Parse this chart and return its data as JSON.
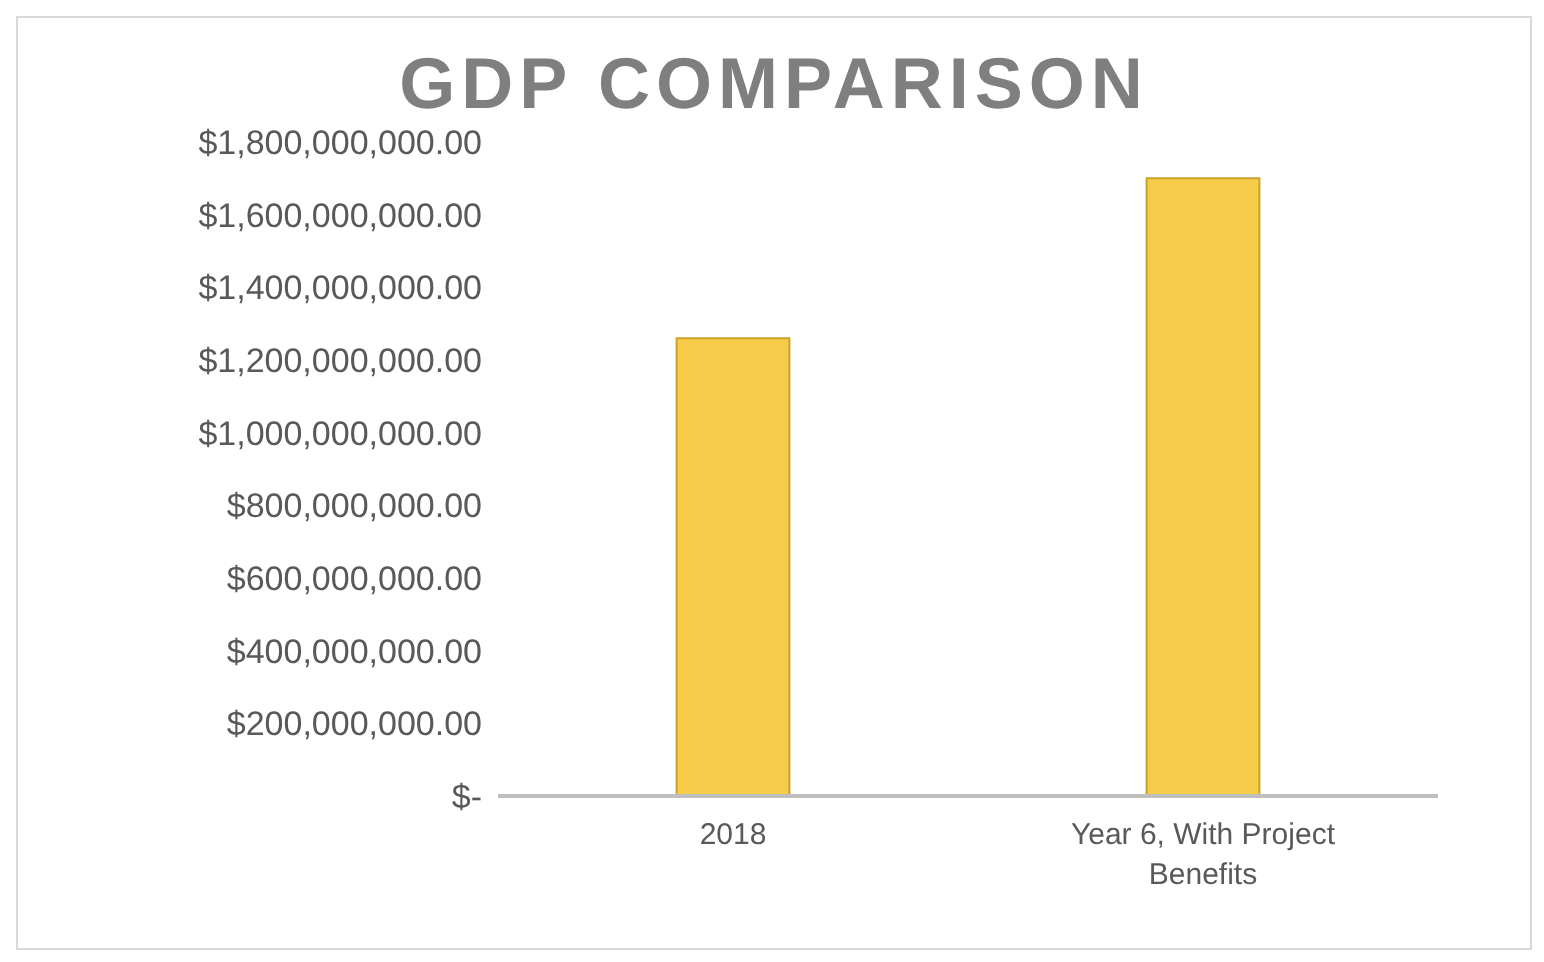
{
  "chart_data": {
    "type": "bar",
    "title": "GDP COMPARISON",
    "categories": [
      "2018",
      "Year 6, With Project Benefits"
    ],
    "values": [
      1260000000,
      1700000000
    ],
    "color": "#f7cc4a",
    "ylim": [
      0,
      1800000000
    ],
    "yticks": [
      {
        "value": 0,
        "label": "$-"
      },
      {
        "value": 200000000,
        "label": "$200,000,000.00"
      },
      {
        "value": 400000000,
        "label": "$400,000,000.00"
      },
      {
        "value": 600000000,
        "label": "$600,000,000.00"
      },
      {
        "value": 800000000,
        "label": "$800,000,000.00"
      },
      {
        "value": 1000000000,
        "label": "$1,000,000,000.00"
      },
      {
        "value": 1200000000,
        "label": "$1,200,000,000.00"
      },
      {
        "value": 1400000000,
        "label": "$1,400,000,000.00"
      },
      {
        "value": 1600000000,
        "label": "$1,600,000,000.00"
      },
      {
        "value": 1800000000,
        "label": "$1,800,000,000.00"
      }
    ],
    "grid": false,
    "legend": false
  }
}
